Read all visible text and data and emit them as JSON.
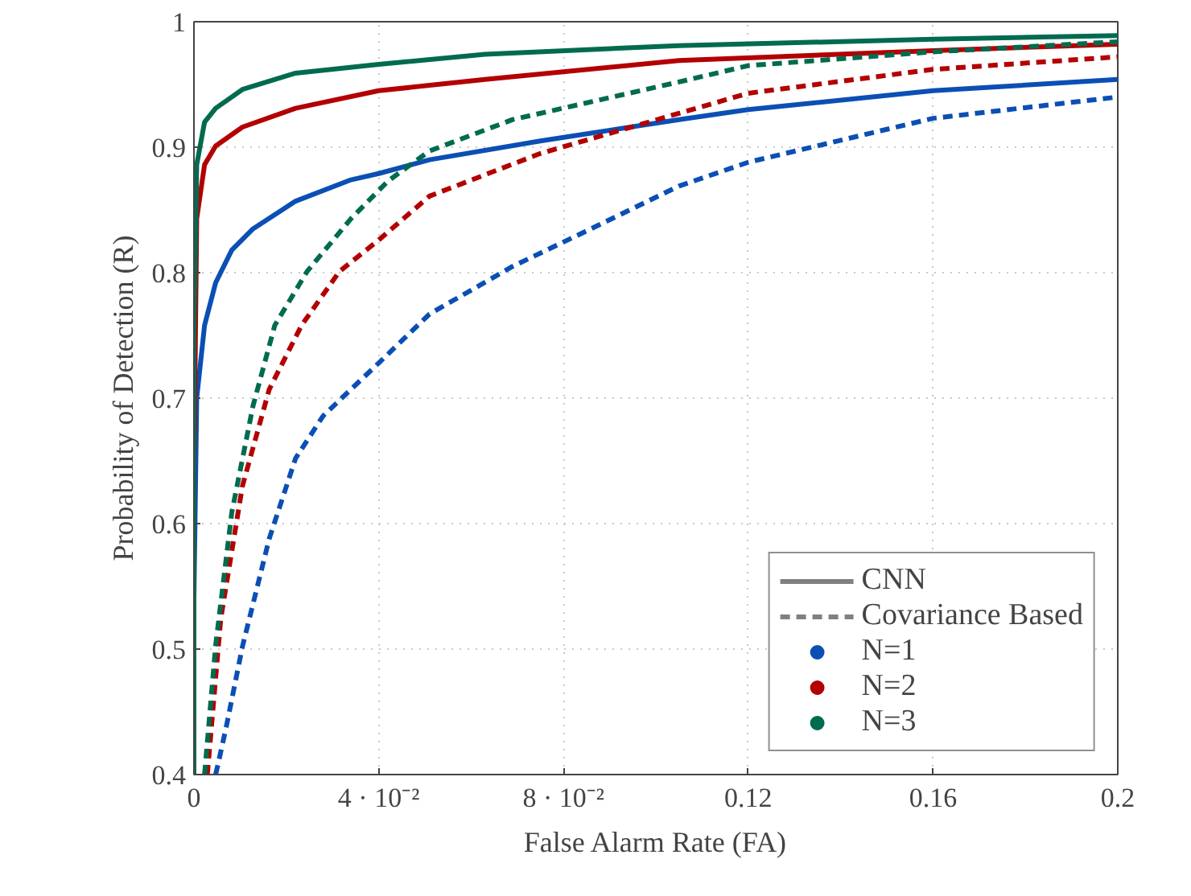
{
  "chart_data": {
    "type": "line",
    "xlabel": "False Alarm Rate (FA)",
    "ylabel": "Probability of Detection (R)",
    "xlim": [
      0,
      0.2
    ],
    "ylim": [
      0.4,
      1
    ],
    "xticks": [
      0,
      {
        "value": 0.04,
        "label": "4 · 10⁻²"
      },
      {
        "value": 0.08,
        "label": "8 · 10⁻²"
      },
      0.12,
      0.16,
      0.2
    ],
    "yticks": [
      0.4,
      0.5,
      0.6,
      0.7,
      0.8,
      0.9,
      1
    ],
    "grid": true,
    "legend": "bottom right",
    "series": [
      {
        "color": "#0b4fb5",
        "line_style": "solid",
        "x": [
          0,
          0,
          0.0006,
          0.0023,
          0.0047,
          0.0082,
          0.0128,
          0.022,
          0.034,
          0.04,
          0.051,
          0.075,
          0.105,
          0.12,
          0.16,
          0.2
        ],
        "values": [
          0.4,
          0.54,
          0.7,
          0.758,
          0.792,
          0.818,
          0.835,
          0.857,
          0.874,
          0.879,
          0.89,
          0.905,
          0.922,
          0.93,
          0.945,
          0.954
        ]
      },
      {
        "color": "#b30000",
        "line_style": "solid",
        "x": [
          0,
          0,
          0.0006,
          0.0023,
          0.0047,
          0.0105,
          0.022,
          0.04,
          0.063,
          0.105,
          0.16,
          0.2
        ],
        "values": [
          0.4,
          0.64,
          0.843,
          0.886,
          0.901,
          0.916,
          0.931,
          0.945,
          0.954,
          0.969,
          0.977,
          0.982
        ]
      },
      {
        "color": "#006b4f",
        "line_style": "solid",
        "x": [
          0,
          0,
          0.0006,
          0.0023,
          0.0047,
          0.0105,
          0.022,
          0.04,
          0.063,
          0.105,
          0.16,
          0.2
        ],
        "values": [
          0.4,
          0.75,
          0.886,
          0.92,
          0.931,
          0.946,
          0.959,
          0.966,
          0.974,
          0.981,
          0.986,
          0.989
        ]
      },
      {
        "color": "#0b4fb5",
        "line_style": "dashed",
        "x": [
          0.0047,
          0.0052,
          0.007,
          0.0105,
          0.0163,
          0.022,
          0.028,
          0.04,
          0.051,
          0.069,
          0.086,
          0.105,
          0.12,
          0.16,
          0.2
        ],
        "values": [
          0.4,
          0.408,
          0.438,
          0.502,
          0.588,
          0.652,
          0.686,
          0.728,
          0.767,
          0.805,
          0.835,
          0.869,
          0.888,
          0.923,
          0.94
        ]
      },
      {
        "color": "#b30000",
        "line_style": "dashed",
        "x": [
          0.0029,
          0.0058,
          0.0105,
          0.0163,
          0.0233,
          0.0315,
          0.04,
          0.051,
          0.075,
          0.105,
          0.12,
          0.16,
          0.2
        ],
        "values": [
          0.4,
          0.524,
          0.63,
          0.707,
          0.758,
          0.801,
          0.826,
          0.861,
          0.895,
          0.927,
          0.943,
          0.962,
          0.972
        ]
      },
      {
        "color": "#006b4f",
        "line_style": "dashed",
        "x": [
          0.0023,
          0.0047,
          0.0082,
          0.0128,
          0.0175,
          0.0245,
          0.034,
          0.042,
          0.051,
          0.069,
          0.105,
          0.12,
          0.16,
          0.2
        ],
        "values": [
          0.4,
          0.503,
          0.609,
          0.694,
          0.758,
          0.801,
          0.843,
          0.873,
          0.897,
          0.922,
          0.952,
          0.965,
          0.976,
          0.984
        ]
      },
      {
        "name": "CNN",
        "color": "#808080",
        "line_style": "solid"
      },
      {
        "name": "Covariance Based",
        "color": "#808080",
        "line_style": "dashed"
      },
      {
        "name": "N=1",
        "type": "scatter",
        "marker": "circle",
        "color": "#0b4fb5"
      },
      {
        "name": "N=2",
        "type": "scatter",
        "marker": "circle",
        "color": "#b30000"
      },
      {
        "name": "N=3",
        "type": "scatter",
        "marker": "circle",
        "color": "#006b4f"
      }
    ]
  }
}
